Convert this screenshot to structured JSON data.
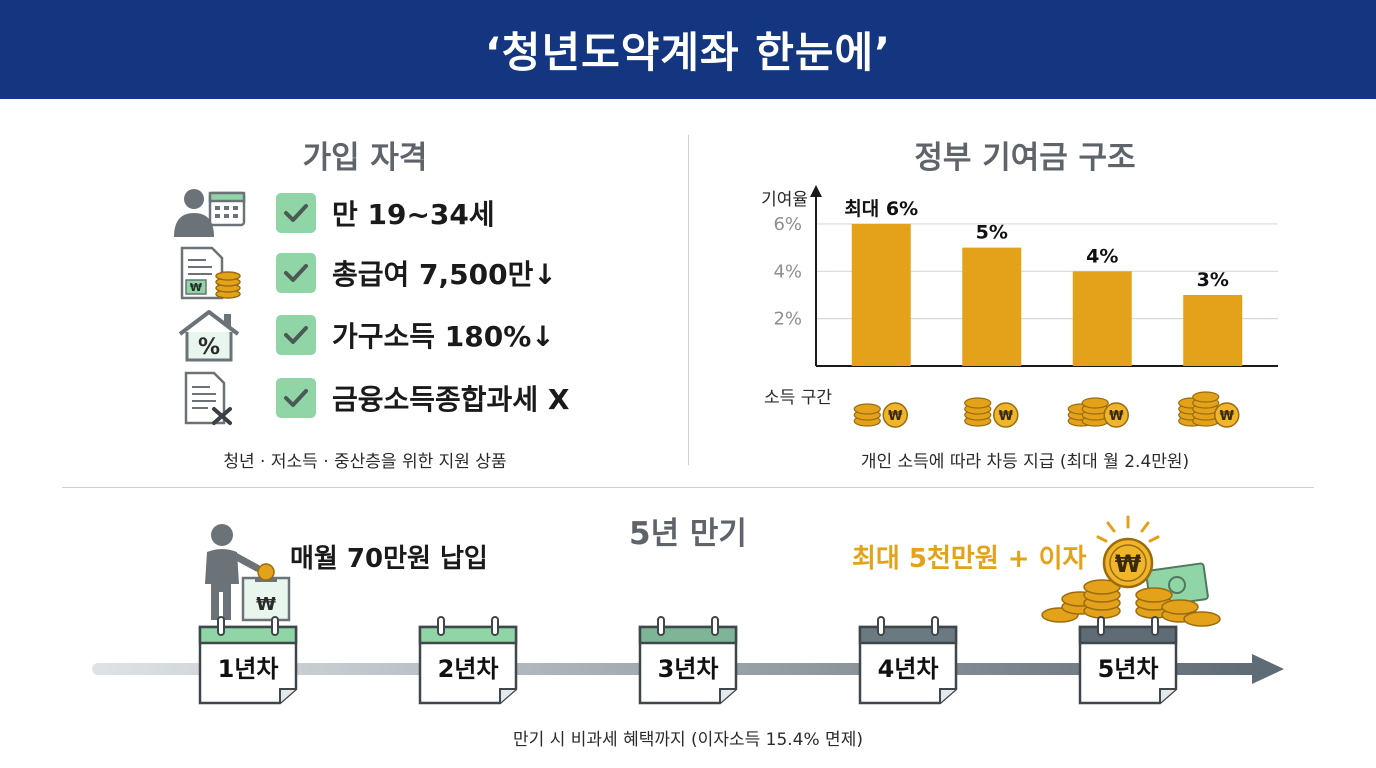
{
  "header": {
    "title": "‘청년도약계좌 한눈에’"
  },
  "eligibility": {
    "title": "가입 자격",
    "items": [
      {
        "icon": "person-calendar-icon",
        "text": "만 19~34세"
      },
      {
        "icon": "salary-document-coins-icon",
        "text": "총급여 7,500만↓"
      },
      {
        "icon": "house-percent-icon",
        "text": "가구소득 180%↓"
      },
      {
        "icon": "document-x-icon",
        "text": "금융소득종합과세 X"
      }
    ],
    "caption": "청년 · 저소득 · 중산층을 위한 지원 상품"
  },
  "contribution": {
    "title": "정부 기여금 구조",
    "caption": "개인 소득에 따라 차등 지급 (최대 월 2.4만원)"
  },
  "chart_data": {
    "type": "bar",
    "categories": [
      "",
      "",
      "",
      ""
    ],
    "values": [
      6,
      5,
      4,
      3
    ],
    "data_labels": [
      "최대 6%",
      "5%",
      "4%",
      "3%"
    ],
    "ylabel": "기여율",
    "xlabel": "소득 구간",
    "yticks": [
      "2%",
      "4%",
      "6%"
    ],
    "ytick_values": [
      2,
      4,
      6
    ],
    "ylim": [
      0,
      6.8
    ],
    "bar_color": "#e3a21a",
    "grid": true
  },
  "maturity": {
    "title": "5년 만기",
    "deposit_label": "매월 70만원 납입",
    "reward_label": "최대 5천만원 + 이자",
    "years": [
      "1년차",
      "2년차",
      "3년차",
      "4년차",
      "5년차"
    ],
    "caption": "만기 시 비과세 혜택까지 (이자소득 15.4% 면제)",
    "colors": {
      "accent": "#e3a21a",
      "calendar_green": "#8fd5a6",
      "calendar_dark": "#5f6b75"
    }
  }
}
